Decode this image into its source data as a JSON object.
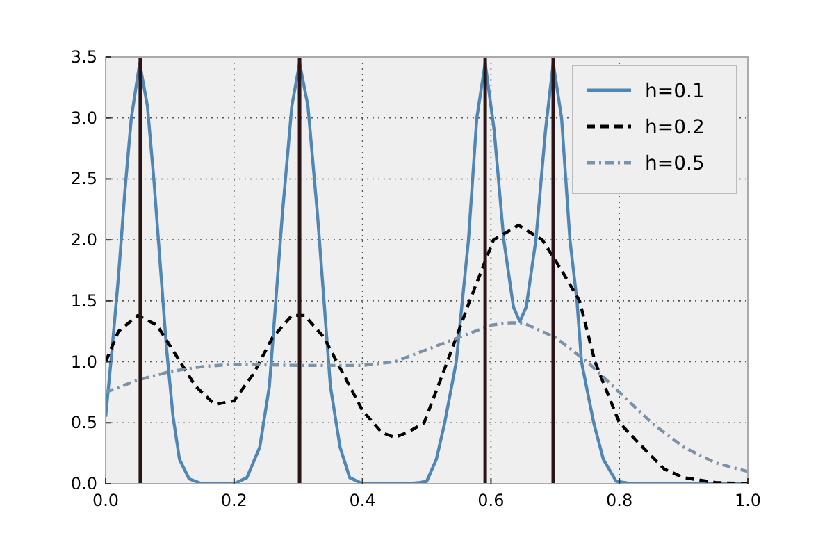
{
  "chart_data": {
    "type": "line",
    "xlim": [
      0,
      1
    ],
    "ylim": [
      0,
      3.5
    ],
    "xticks": [
      {
        "value": 0,
        "label": "0.0"
      },
      {
        "value": 0.2,
        "label": "0.2"
      },
      {
        "value": 0.4,
        "label": "0.4"
      },
      {
        "value": 0.6,
        "label": "0.6"
      },
      {
        "value": 0.8,
        "label": "0.8"
      },
      {
        "value": 1,
        "label": "1.0"
      }
    ],
    "yticks": [
      {
        "value": 0,
        "label": "0.0"
      },
      {
        "value": 0.5,
        "label": "0.5"
      },
      {
        "value": 1,
        "label": "1.0"
      },
      {
        "value": 1.5,
        "label": "1.5"
      },
      {
        "value": 2,
        "label": "2.0"
      },
      {
        "value": 2.5,
        "label": "2.5"
      },
      {
        "value": 3,
        "label": "3.0"
      },
      {
        "value": 3.5,
        "label": "3.5"
      }
    ],
    "grid": true,
    "legend": "top right",
    "series": [
      {
        "name": "h=0.1",
        "color": "#4f86b4",
        "line_style": "solid",
        "x": [
          0,
          0.01,
          0.02,
          0.03,
          0.04,
          0.053,
          0.065,
          0.075,
          0.085,
          0.095,
          0.105,
          0.115,
          0.13,
          0.15,
          0.2,
          0.22,
          0.24,
          0.255,
          0.265,
          0.275,
          0.29,
          0.302,
          0.315,
          0.33,
          0.34,
          0.35,
          0.365,
          0.38,
          0.4,
          0.47,
          0.49,
          0.5,
          0.515,
          0.528,
          0.546,
          0.565,
          0.578,
          0.591,
          0.605,
          0.62,
          0.635,
          0.645,
          0.655,
          0.67,
          0.685,
          0.697,
          0.71,
          0.723,
          0.734,
          0.741,
          0.76,
          0.775,
          0.795,
          0.82,
          1
        ],
        "values": [
          0.55,
          1.1,
          1.7,
          2.4,
          3.0,
          3.45,
          3.1,
          2.5,
          1.8,
          1.1,
          0.55,
          0.2,
          0.04,
          0,
          0,
          0.05,
          0.3,
          0.8,
          1.5,
          2.2,
          3.1,
          3.45,
          3.1,
          2.2,
          1.5,
          0.8,
          0.3,
          0.05,
          0,
          0,
          0.01,
          0.02,
          0.2,
          0.5,
          1.0,
          2.0,
          3.0,
          3.45,
          2.9,
          2.0,
          1.45,
          1.33,
          1.45,
          2.0,
          2.9,
          3.45,
          3.0,
          2.0,
          1.5,
          1.0,
          0.5,
          0.2,
          0.02,
          0,
          0
        ]
      },
      {
        "name": "h=0.2",
        "color": "#000000",
        "line_style": "dashed",
        "x": [
          0,
          0.02,
          0.05,
          0.08,
          0.11,
          0.14,
          0.17,
          0.2,
          0.23,
          0.26,
          0.29,
          0.31,
          0.34,
          0.37,
          0.4,
          0.43,
          0.45,
          0.47,
          0.496,
          0.532,
          0.567,
          0.604,
          0.643,
          0.68,
          0.71,
          0.738,
          0.762,
          0.8,
          0.838,
          0.87,
          0.9,
          0.95,
          1
        ],
        "values": [
          1.0,
          1.25,
          1.38,
          1.3,
          1.05,
          0.8,
          0.65,
          0.68,
          0.9,
          1.2,
          1.38,
          1.38,
          1.2,
          0.9,
          0.6,
          0.42,
          0.38,
          0.42,
          0.5,
          1.0,
          1.5,
          2.0,
          2.12,
          2.0,
          1.75,
          1.5,
          1.0,
          0.5,
          0.29,
          0.12,
          0.05,
          0.01,
          0
        ]
      },
      {
        "name": "h=0.5",
        "color": "#7b93a8",
        "line_style": "dotted",
        "x": [
          0,
          0.05,
          0.1,
          0.15,
          0.2,
          0.3,
          0.4,
          0.45,
          0.5,
          0.55,
          0.6,
          0.63,
          0.65,
          0.7,
          0.75,
          0.8,
          0.85,
          0.9,
          0.95,
          1
        ],
        "values": [
          0.75,
          0.85,
          0.92,
          0.96,
          0.98,
          0.97,
          0.97,
          1.0,
          1.1,
          1.2,
          1.3,
          1.32,
          1.32,
          1.2,
          1.0,
          0.75,
          0.5,
          0.3,
          0.17,
          0.1
        ]
      }
    ],
    "ref_lines": [
      {
        "axis": "x",
        "value": 0.054,
        "color": "#2a1416"
      },
      {
        "axis": "x",
        "value": 0.302,
        "color": "#2a1416"
      },
      {
        "axis": "x",
        "value": 0.591,
        "color": "#2a1416"
      },
      {
        "axis": "x",
        "value": 0.697,
        "color": "#2a1416"
      }
    ]
  }
}
